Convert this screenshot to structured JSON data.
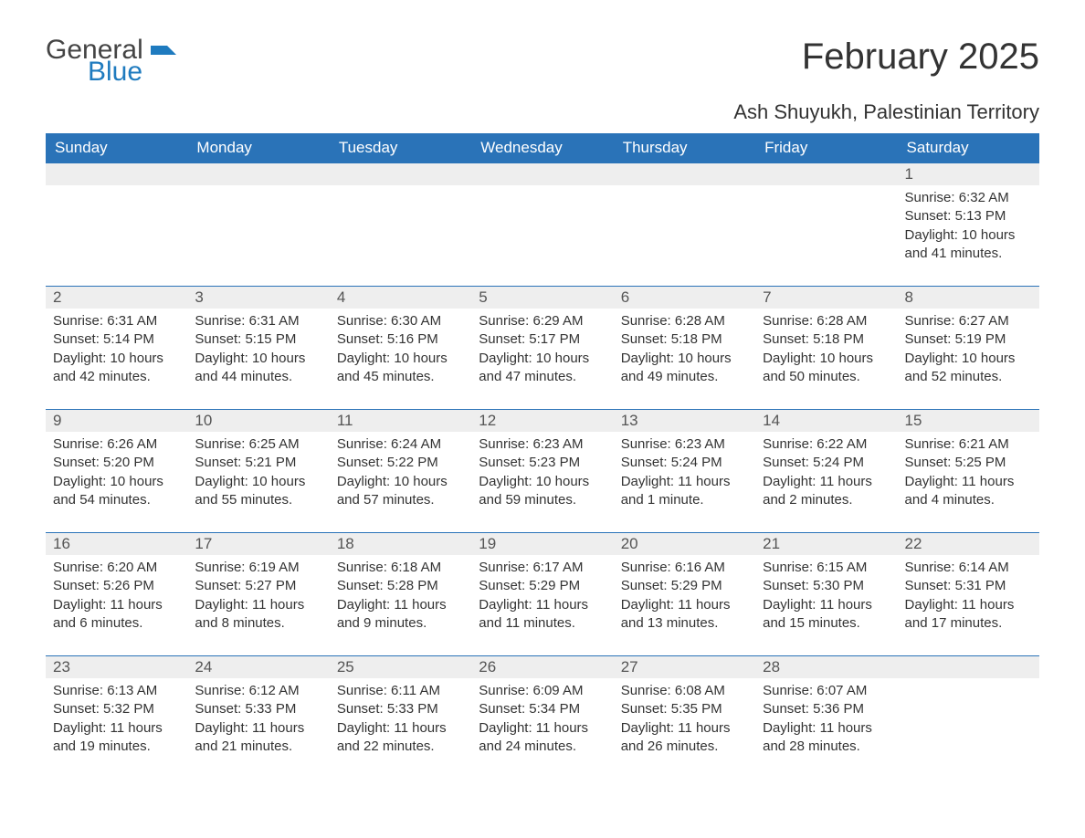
{
  "logo": {
    "word1": "General",
    "word2": "Blue"
  },
  "title": "February 2025",
  "location": "Ash Shuyukh, Palestinian Territory",
  "colors": {
    "header_bg": "#2a73b8",
    "header_text": "#ffffff",
    "daynum_bg": "#eeeeee",
    "text": "#333333",
    "logo_blue": "#1f7bbf",
    "logo_gray": "#444444",
    "border": "#2a73b8",
    "page_bg": "#ffffff"
  },
  "typography": {
    "title_fontsize": 40,
    "location_fontsize": 22,
    "header_fontsize": 17,
    "daynum_fontsize": 17,
    "body_fontsize": 15,
    "font_family": "Segoe UI"
  },
  "columns": [
    "Sunday",
    "Monday",
    "Tuesday",
    "Wednesday",
    "Thursday",
    "Friday",
    "Saturday"
  ],
  "weeks": [
    [
      null,
      null,
      null,
      null,
      null,
      null,
      {
        "day": "1",
        "sunrise": "Sunrise: 6:32 AM",
        "sunset": "Sunset: 5:13 PM",
        "daylight": "Daylight: 10 hours and 41 minutes."
      }
    ],
    [
      {
        "day": "2",
        "sunrise": "Sunrise: 6:31 AM",
        "sunset": "Sunset: 5:14 PM",
        "daylight": "Daylight: 10 hours and 42 minutes."
      },
      {
        "day": "3",
        "sunrise": "Sunrise: 6:31 AM",
        "sunset": "Sunset: 5:15 PM",
        "daylight": "Daylight: 10 hours and 44 minutes."
      },
      {
        "day": "4",
        "sunrise": "Sunrise: 6:30 AM",
        "sunset": "Sunset: 5:16 PM",
        "daylight": "Daylight: 10 hours and 45 minutes."
      },
      {
        "day": "5",
        "sunrise": "Sunrise: 6:29 AM",
        "sunset": "Sunset: 5:17 PM",
        "daylight": "Daylight: 10 hours and 47 minutes."
      },
      {
        "day": "6",
        "sunrise": "Sunrise: 6:28 AM",
        "sunset": "Sunset: 5:18 PM",
        "daylight": "Daylight: 10 hours and 49 minutes."
      },
      {
        "day": "7",
        "sunrise": "Sunrise: 6:28 AM",
        "sunset": "Sunset: 5:18 PM",
        "daylight": "Daylight: 10 hours and 50 minutes."
      },
      {
        "day": "8",
        "sunrise": "Sunrise: 6:27 AM",
        "sunset": "Sunset: 5:19 PM",
        "daylight": "Daylight: 10 hours and 52 minutes."
      }
    ],
    [
      {
        "day": "9",
        "sunrise": "Sunrise: 6:26 AM",
        "sunset": "Sunset: 5:20 PM",
        "daylight": "Daylight: 10 hours and 54 minutes."
      },
      {
        "day": "10",
        "sunrise": "Sunrise: 6:25 AM",
        "sunset": "Sunset: 5:21 PM",
        "daylight": "Daylight: 10 hours and 55 minutes."
      },
      {
        "day": "11",
        "sunrise": "Sunrise: 6:24 AM",
        "sunset": "Sunset: 5:22 PM",
        "daylight": "Daylight: 10 hours and 57 minutes."
      },
      {
        "day": "12",
        "sunrise": "Sunrise: 6:23 AM",
        "sunset": "Sunset: 5:23 PM",
        "daylight": "Daylight: 10 hours and 59 minutes."
      },
      {
        "day": "13",
        "sunrise": "Sunrise: 6:23 AM",
        "sunset": "Sunset: 5:24 PM",
        "daylight": "Daylight: 11 hours and 1 minute."
      },
      {
        "day": "14",
        "sunrise": "Sunrise: 6:22 AM",
        "sunset": "Sunset: 5:24 PM",
        "daylight": "Daylight: 11 hours and 2 minutes."
      },
      {
        "day": "15",
        "sunrise": "Sunrise: 6:21 AM",
        "sunset": "Sunset: 5:25 PM",
        "daylight": "Daylight: 11 hours and 4 minutes."
      }
    ],
    [
      {
        "day": "16",
        "sunrise": "Sunrise: 6:20 AM",
        "sunset": "Sunset: 5:26 PM",
        "daylight": "Daylight: 11 hours and 6 minutes."
      },
      {
        "day": "17",
        "sunrise": "Sunrise: 6:19 AM",
        "sunset": "Sunset: 5:27 PM",
        "daylight": "Daylight: 11 hours and 8 minutes."
      },
      {
        "day": "18",
        "sunrise": "Sunrise: 6:18 AM",
        "sunset": "Sunset: 5:28 PM",
        "daylight": "Daylight: 11 hours and 9 minutes."
      },
      {
        "day": "19",
        "sunrise": "Sunrise: 6:17 AM",
        "sunset": "Sunset: 5:29 PM",
        "daylight": "Daylight: 11 hours and 11 minutes."
      },
      {
        "day": "20",
        "sunrise": "Sunrise: 6:16 AM",
        "sunset": "Sunset: 5:29 PM",
        "daylight": "Daylight: 11 hours and 13 minutes."
      },
      {
        "day": "21",
        "sunrise": "Sunrise: 6:15 AM",
        "sunset": "Sunset: 5:30 PM",
        "daylight": "Daylight: 11 hours and 15 minutes."
      },
      {
        "day": "22",
        "sunrise": "Sunrise: 6:14 AM",
        "sunset": "Sunset: 5:31 PM",
        "daylight": "Daylight: 11 hours and 17 minutes."
      }
    ],
    [
      {
        "day": "23",
        "sunrise": "Sunrise: 6:13 AM",
        "sunset": "Sunset: 5:32 PM",
        "daylight": "Daylight: 11 hours and 19 minutes."
      },
      {
        "day": "24",
        "sunrise": "Sunrise: 6:12 AM",
        "sunset": "Sunset: 5:33 PM",
        "daylight": "Daylight: 11 hours and 21 minutes."
      },
      {
        "day": "25",
        "sunrise": "Sunrise: 6:11 AM",
        "sunset": "Sunset: 5:33 PM",
        "daylight": "Daylight: 11 hours and 22 minutes."
      },
      {
        "day": "26",
        "sunrise": "Sunrise: 6:09 AM",
        "sunset": "Sunset: 5:34 PM",
        "daylight": "Daylight: 11 hours and 24 minutes."
      },
      {
        "day": "27",
        "sunrise": "Sunrise: 6:08 AM",
        "sunset": "Sunset: 5:35 PM",
        "daylight": "Daylight: 11 hours and 26 minutes."
      },
      {
        "day": "28",
        "sunrise": "Sunrise: 6:07 AM",
        "sunset": "Sunset: 5:36 PM",
        "daylight": "Daylight: 11 hours and 28 minutes."
      },
      null
    ]
  ]
}
